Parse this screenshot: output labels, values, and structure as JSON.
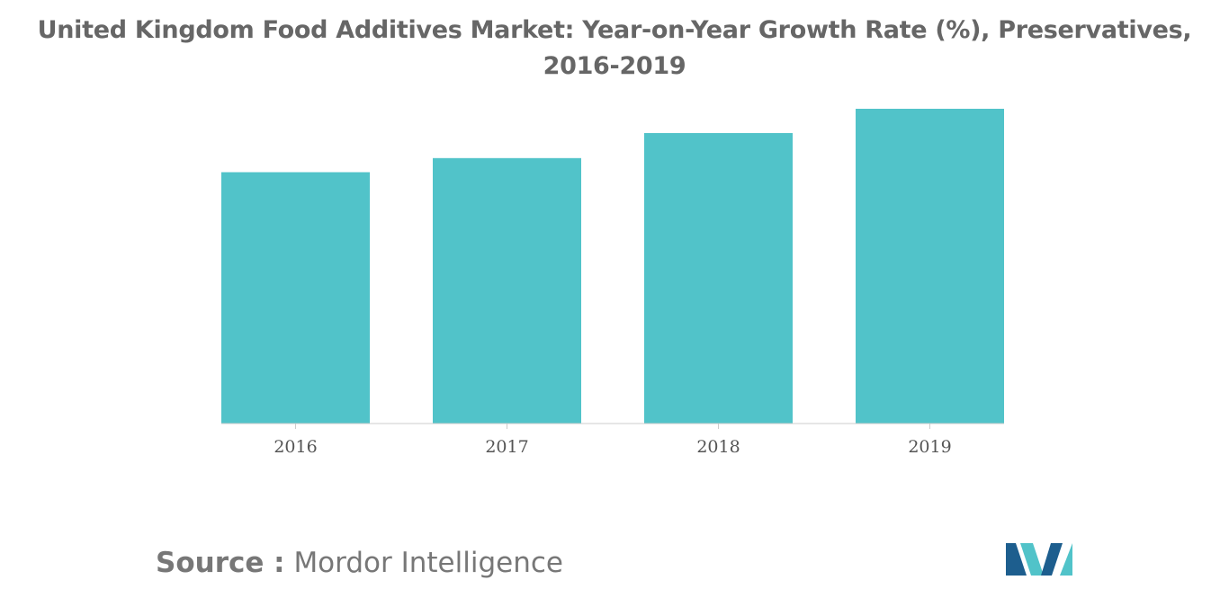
{
  "chart_data": {
    "type": "bar",
    "title": "United Kingdom Food Additives Market: Year-on-Year Growth Rate (%), Preservatives, 2016-2019",
    "categories": [
      "2016",
      "2017",
      "2018",
      "2019"
    ],
    "values": [
      3.21,
      3.39,
      3.71,
      4.02
    ],
    "xlabel": "",
    "ylabel": "",
    "ylim": [
      0,
      4.1
    ],
    "grid": false,
    "legend": "none",
    "bar_color": "#51C3C9"
  },
  "source": {
    "prefix": "Source :",
    "name": "Mordor Intelligence"
  },
  "colors": {
    "title": "#666666",
    "axis": "#cccccc",
    "tick_label": "#555555",
    "logo_dark": "#1D5E8E",
    "logo_light": "#51C3C9"
  }
}
